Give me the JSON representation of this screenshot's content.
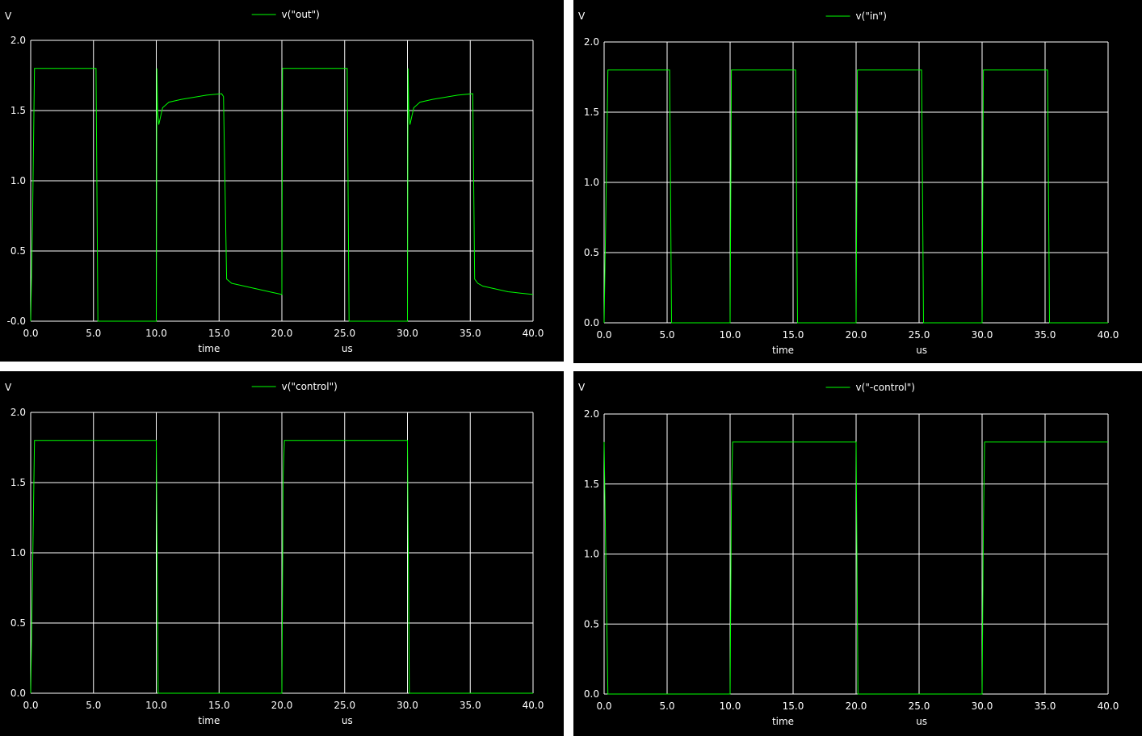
{
  "chart_data": [
    {
      "type": "line",
      "title": "",
      "legend": "v(\"out\")",
      "ylabel": "V",
      "xlabel": "time",
      "xunit": "us",
      "color": "#00ff00",
      "xlim": [
        0,
        40
      ],
      "ylim": [
        0,
        2
      ],
      "yticks": [
        "-0.0",
        "0.5",
        "1.0",
        "1.5",
        "2.0"
      ],
      "xticks": [
        "0.0",
        "5.0",
        "10.0",
        "15.0",
        "20.0",
        "25.0",
        "30.0",
        "35.0",
        "40.0"
      ],
      "series": [
        {
          "name": "v(\"out\")",
          "x": [
            0,
            0.15,
            0.3,
            5.2,
            5.35,
            10.0,
            10.05,
            10.1,
            10.2,
            10.5,
            11,
            12,
            13,
            14,
            15.2,
            15.35,
            15.6,
            16,
            17,
            18,
            19,
            20.0,
            20.05,
            20.2,
            25.2,
            25.35,
            30.0,
            30.05,
            30.1,
            30.2,
            30.5,
            31,
            32,
            33,
            34,
            35.2,
            35.35,
            35.6,
            36,
            37,
            38,
            39,
            40
          ],
          "y": [
            0,
            0.72,
            1.8,
            1.8,
            0,
            0,
            1.8,
            1.5,
            1.4,
            1.52,
            1.56,
            1.58,
            1.595,
            1.61,
            1.62,
            1.6,
            0.3,
            0.27,
            0.25,
            0.23,
            0.21,
            0.19,
            1.8,
            1.8,
            1.8,
            0,
            0,
            1.8,
            1.5,
            1.4,
            1.52,
            1.56,
            1.58,
            1.595,
            1.61,
            1.62,
            0.3,
            0.27,
            0.25,
            0.23,
            0.21,
            0.2,
            0.19
          ]
        }
      ]
    },
    {
      "type": "line",
      "title": "",
      "legend": "v(\"in\")",
      "ylabel": "V",
      "xlabel": "time",
      "xunit": "us",
      "color": "#00ff00",
      "xlim": [
        0,
        40
      ],
      "ylim": [
        0,
        2
      ],
      "yticks": [
        "0.0",
        "0.5",
        "1.0",
        "1.5",
        "2.0"
      ],
      "xticks": [
        "0.0",
        "5.0",
        "10.0",
        "15.0",
        "20.0",
        "25.0",
        "30.0",
        "35.0",
        "40.0"
      ],
      "series": [
        {
          "name": "v(\"in\")",
          "x": [
            0,
            0.15,
            0.3,
            5.2,
            5.35,
            10.0,
            10.1,
            15.2,
            15.35,
            20.0,
            20.1,
            25.2,
            25.35,
            30.0,
            30.1,
            35.2,
            35.35,
            40
          ],
          "y": [
            0,
            0.85,
            1.8,
            1.8,
            0,
            0,
            1.8,
            1.8,
            0,
            0,
            1.8,
            1.8,
            0,
            0,
            1.8,
            1.8,
            0,
            0
          ]
        }
      ]
    },
    {
      "type": "line",
      "title": "",
      "legend": "v(\"control\")",
      "ylabel": "V",
      "xlabel": "time",
      "xunit": "us",
      "color": "#00ff00",
      "xlim": [
        0,
        40
      ],
      "ylim": [
        0,
        2
      ],
      "yticks": [
        "0.0",
        "0.5",
        "1.0",
        "1.5",
        "2.0"
      ],
      "xticks": [
        "0.0",
        "5.0",
        "10.0",
        "15.0",
        "20.0",
        "25.0",
        "30.0",
        "35.0",
        "40.0"
      ],
      "series": [
        {
          "name": "v(\"control\")",
          "x": [
            0,
            0.15,
            0.3,
            10.0,
            10.15,
            20.0,
            20.1,
            20.2,
            30.0,
            30.15,
            40
          ],
          "y": [
            0,
            0.85,
            1.8,
            1.8,
            0,
            0,
            1.55,
            1.8,
            1.8,
            0,
            0
          ]
        }
      ]
    },
    {
      "type": "line",
      "title": "",
      "legend": "v(\"-control\")",
      "ylabel": "V",
      "xlabel": "time",
      "xunit": "us",
      "color": "#00ff00",
      "xlim": [
        0,
        40
      ],
      "ylim": [
        0,
        2
      ],
      "yticks": [
        "0.0",
        "0.5",
        "1.0",
        "1.5",
        "2.0"
      ],
      "xticks": [
        "0.0",
        "5.0",
        "10.0",
        "15.0",
        "20.0",
        "25.0",
        "30.0",
        "35.0",
        "40.0"
      ],
      "series": [
        {
          "name": "v(\"-control\")",
          "x": [
            0,
            0.15,
            0.3,
            10.0,
            10.1,
            10.2,
            20.0,
            20.15,
            30.0,
            30.1,
            30.2,
            40
          ],
          "y": [
            1.8,
            0.9,
            0,
            0,
            1.4,
            1.8,
            1.8,
            0,
            0,
            1.2,
            1.8,
            1.8
          ]
        }
      ]
    }
  ]
}
